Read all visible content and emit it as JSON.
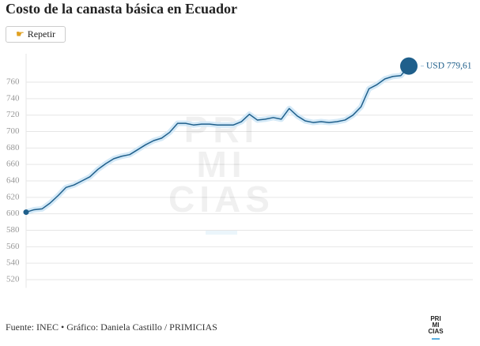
{
  "chart_data": {
    "type": "line",
    "title": "Costo de la canasta básica en Ecuador",
    "replay_button": "Repetir",
    "source": "Fuente: INEC • Gráfico: Daniela Castillo / PRIMICIAS",
    "watermark": [
      "PRI",
      "MI",
      "CIAS"
    ],
    "values": [
      602,
      605,
      606,
      613,
      622,
      632,
      635,
      640,
      645,
      654,
      661,
      667,
      670,
      672,
      678,
      684,
      689,
      692,
      699,
      710,
      710,
      708,
      709,
      709,
      708,
      708,
      708,
      712,
      721,
      714,
      715,
      717,
      715,
      728,
      719,
      713,
      711,
      712,
      711,
      712,
      714,
      720,
      730,
      752,
      757,
      764,
      767,
      768,
      779.61
    ],
    "value_labels": [
      null,
      null,
      null,
      null,
      null,
      null,
      null,
      null,
      null,
      null,
      null,
      null,
      null,
      null,
      null,
      null,
      null,
      null,
      null,
      null,
      null,
      null,
      null,
      null,
      null,
      null,
      null,
      null,
      null,
      null,
      null,
      null,
      null,
      null,
      null,
      null,
      null,
      null,
      null,
      null,
      null,
      null,
      null,
      null,
      null,
      null,
      null,
      null,
      "USD 779,61"
    ],
    "color": "#1f5f8b",
    "ylim": [
      510,
      785
    ],
    "yticks": [
      520,
      540,
      560,
      580,
      600,
      620,
      640,
      660,
      680,
      700,
      720,
      740,
      760
    ],
    "grid": true
  }
}
